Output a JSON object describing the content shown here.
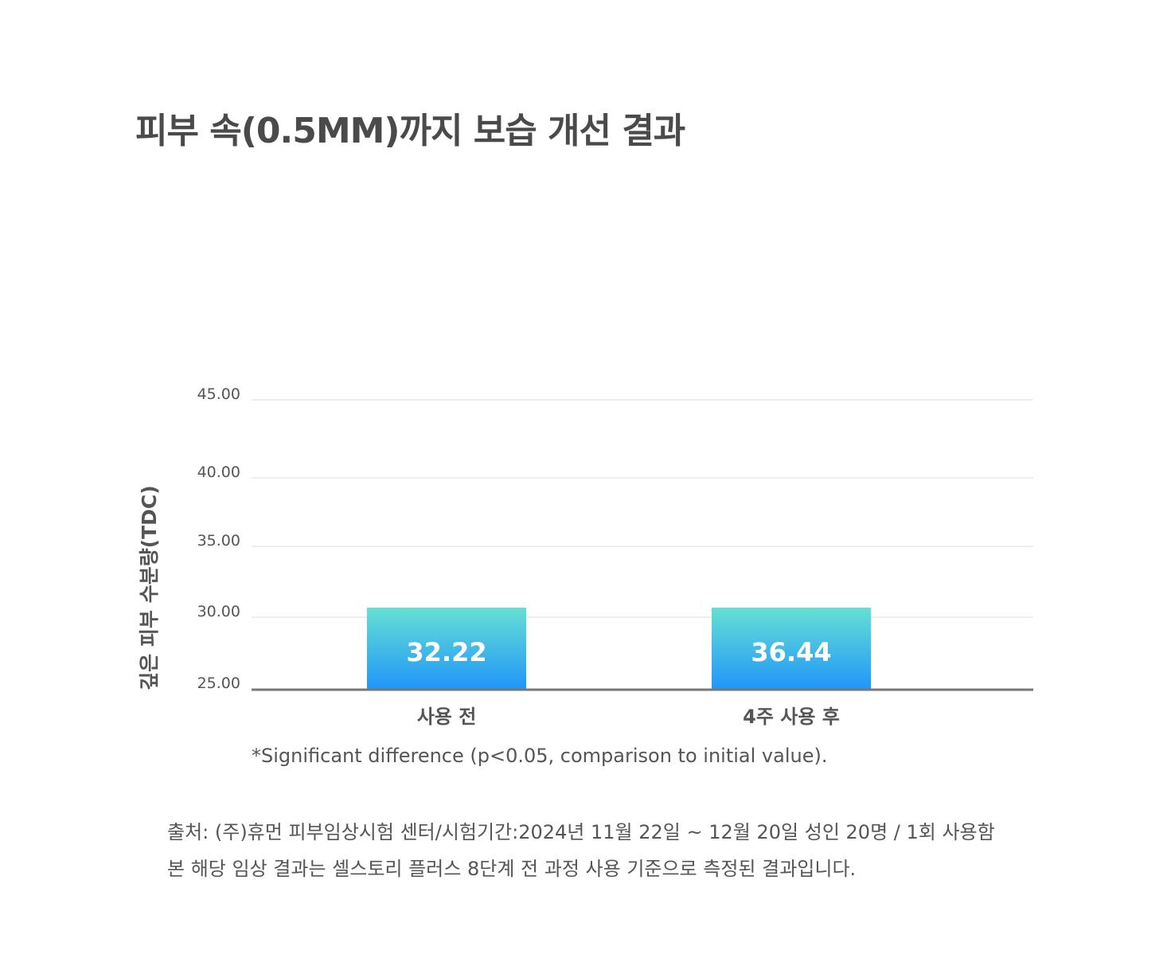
{
  "title": "피부 속(0.5MM)까지 보습 개선 결과",
  "chart_data": {
    "type": "bar",
    "ylabel": "깊은 피부 수분량(TDC)",
    "xlabel": "",
    "y_ticks": [
      "25.00",
      "30.00",
      "35.00",
      "40.00",
      "45.00"
    ],
    "ylim": [
      25,
      45
    ],
    "categories": [
      "사용 전",
      "4주 사용 후"
    ],
    "values": [
      32.22,
      36.44
    ],
    "value_labels": [
      "32.22",
      "36.44"
    ],
    "grid": true,
    "colors": {
      "bar_top": "#66e0d4",
      "bar_bottom": "#2196f8",
      "value_text": "#ffffff",
      "gridline": "#dddddd",
      "baseline": "#777777"
    }
  },
  "footnote": "*Significant difference (p<0.05, comparison to initial value).",
  "source": {
    "line1": "출처: (주)휴먼 피부임상시험 센터/시험기간:2024년 11월 22일 ~ 12월 20일 성인 20명 / 1회 사용함",
    "line2": "본 해당 임상 결과는 셀스토리 플러스 8단계 전 과정 사용 기준으로 측정된 결과입니다."
  }
}
